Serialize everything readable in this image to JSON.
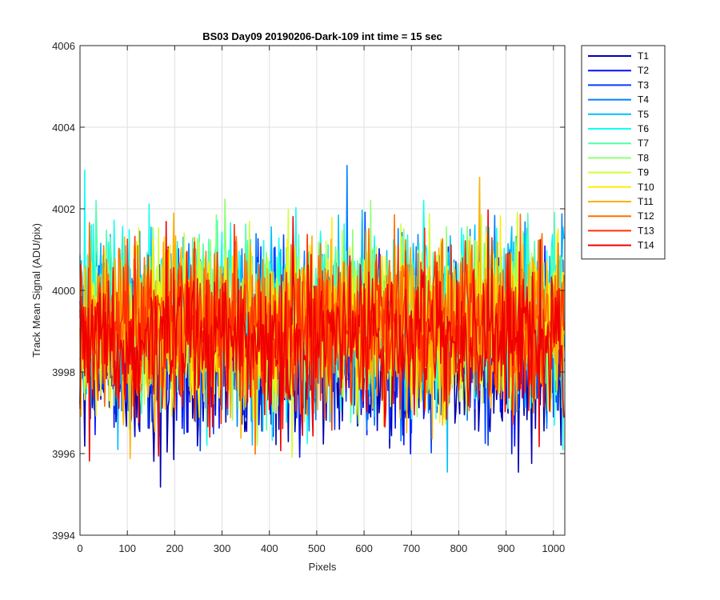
{
  "chart_data": {
    "type": "line",
    "title": "BS03 Day09 20190206-Dark-109 int time = 15 sec",
    "xlabel": "Pixels",
    "ylabel": "Track Mean Signal (ADU/pix)",
    "xlim": [
      0,
      1024
    ],
    "ylim": [
      3994,
      4006
    ],
    "xticks": [
      "0",
      "100",
      "200",
      "300",
      "400",
      "500",
      "600",
      "700",
      "800",
      "900",
      "1000"
    ],
    "yticks": [
      "3994",
      "3996",
      "3998",
      "4000",
      "4002",
      "4004",
      "4006"
    ],
    "grid": true,
    "legend_position": "outside-top-right",
    "x_points": 1024,
    "series": [
      {
        "name": "T1",
        "color": "#0000af",
        "mean": 3998.3,
        "noise": 1.0
      },
      {
        "name": "T2",
        "color": "#0010ff",
        "mean": 3998.6,
        "noise": 1.0
      },
      {
        "name": "T3",
        "color": "#0040ff",
        "mean": 3998.8,
        "noise": 1.0
      },
      {
        "name": "T4",
        "color": "#0080ff",
        "mean": 3999.0,
        "noise": 1.0
      },
      {
        "name": "T5",
        "color": "#00bfff",
        "mean": 3999.3,
        "noise": 1.05
      },
      {
        "name": "T6",
        "color": "#10ffef",
        "mean": 3999.4,
        "noise": 1.05
      },
      {
        "name": "T7",
        "color": "#50ffaf",
        "mean": 3999.4,
        "noise": 1.0
      },
      {
        "name": "T8",
        "color": "#8fff70",
        "mean": 3999.3,
        "noise": 1.0
      },
      {
        "name": "T9",
        "color": "#cfff30",
        "mean": 3999.2,
        "noise": 1.0
      },
      {
        "name": "T10",
        "color": "#ffef00",
        "mean": 3999.1,
        "noise": 1.0
      },
      {
        "name": "T11",
        "color": "#ffb000",
        "mean": 3999.0,
        "noise": 1.0
      },
      {
        "name": "T12",
        "color": "#ff7000",
        "mean": 3999.3,
        "noise": 0.95
      },
      {
        "name": "T13",
        "color": "#ff3000",
        "mean": 3999.0,
        "noise": 0.95
      },
      {
        "name": "T14",
        "color": "#ef0000",
        "mean": 3998.8,
        "noise": 0.95
      }
    ]
  }
}
